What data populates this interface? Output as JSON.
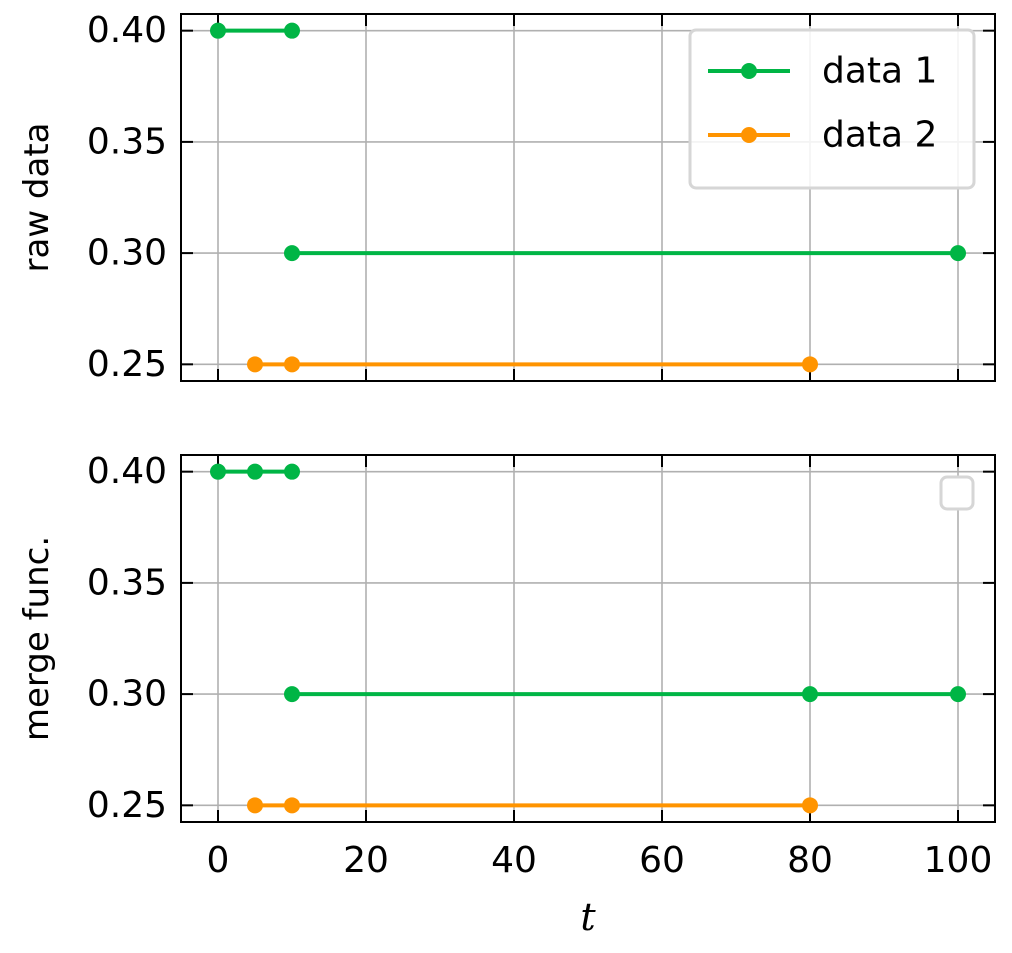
{
  "colors": {
    "data1": "#00b545",
    "data2": "#ff9400",
    "grid": "#b0b0b0"
  },
  "chart_data": [
    {
      "type": "line",
      "ylabel": "raw data",
      "xlim": [
        -5,
        105
      ],
      "ylim": [
        0.2425,
        0.4075
      ],
      "xticks": [
        0,
        20,
        40,
        60,
        80,
        100
      ],
      "yticks": [
        0.25,
        0.3,
        0.35,
        0.4
      ],
      "ytick_labels": [
        "0.25",
        "0.30",
        "0.35",
        "0.40"
      ],
      "grid": true,
      "legend": {
        "placement": "top-right",
        "entries": [
          "data 1",
          "data 2"
        ]
      },
      "series": [
        {
          "name": "data 1",
          "color_key": "data1",
          "segments": [
            [
              [
                0,
                0.4
              ],
              [
                10,
                0.4
              ]
            ],
            [
              [
                10,
                0.3
              ],
              [
                100,
                0.3
              ]
            ]
          ]
        },
        {
          "name": "data 2",
          "color_key": "data2",
          "segments": [
            [
              [
                5,
                0.25
              ],
              [
                10,
                0.25
              ],
              [
                80,
                0.25
              ]
            ]
          ]
        }
      ]
    },
    {
      "type": "line",
      "ylabel": "merge func.",
      "xlabel": "t",
      "xlim": [
        -5,
        105
      ],
      "ylim": [
        0.2425,
        0.4075
      ],
      "xticks": [
        0,
        20,
        40,
        60,
        80,
        100
      ],
      "xtick_labels": [
        "0",
        "20",
        "40",
        "60",
        "80",
        "100"
      ],
      "yticks": [
        0.25,
        0.3,
        0.35,
        0.4
      ],
      "ytick_labels": [
        "0.25",
        "0.30",
        "0.35",
        "0.40"
      ],
      "grid": true,
      "legend": {
        "placement": "top-right",
        "entries": []
      },
      "series": [
        {
          "color_key": "data1",
          "segments": [
            [
              [
                0,
                0.4
              ],
              [
                5,
                0.4
              ],
              [
                10,
                0.4
              ]
            ],
            [
              [
                10,
                0.3
              ],
              [
                80,
                0.3
              ],
              [
                100,
                0.3
              ]
            ]
          ]
        },
        {
          "color_key": "data2",
          "segments": [
            [
              [
                5,
                0.25
              ],
              [
                10,
                0.25
              ],
              [
                80,
                0.25
              ]
            ]
          ]
        }
      ]
    }
  ]
}
